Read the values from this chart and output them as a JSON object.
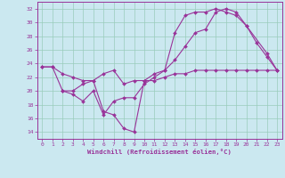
{
  "xlabel": "Windchill (Refroidissement éolien,°C)",
  "bg_color": "#cbe8f0",
  "line_color": "#993399",
  "grid_color": "#99ccbb",
  "xlim": [
    -0.5,
    23.5
  ],
  "ylim": [
    13.0,
    33.0
  ],
  "yticks": [
    14,
    16,
    18,
    20,
    22,
    24,
    26,
    28,
    30,
    32
  ],
  "xticks": [
    0,
    1,
    2,
    3,
    4,
    5,
    6,
    7,
    8,
    9,
    10,
    11,
    12,
    13,
    14,
    15,
    16,
    17,
    18,
    19,
    20,
    21,
    22,
    23
  ],
  "series": [
    {
      "x": [
        0,
        1,
        2,
        3,
        4,
        5,
        6,
        7,
        8,
        9,
        10,
        11,
        12,
        13,
        14,
        15,
        16,
        17,
        18,
        19,
        20,
        21,
        22,
        23
      ],
      "y": [
        23.5,
        23.5,
        22.5,
        22.0,
        21.5,
        21.5,
        17.0,
        16.5,
        14.5,
        14.0,
        21.5,
        22.5,
        23.0,
        28.5,
        31.0,
        31.5,
        31.5,
        32.0,
        31.5,
        31.0,
        29.5,
        27.0,
        25.0,
        23.0
      ]
    },
    {
      "x": [
        0,
        1,
        2,
        3,
        4,
        5,
        6,
        7,
        8,
        9,
        10,
        11,
        12,
        13,
        14,
        15,
        16,
        17,
        18,
        19,
        20,
        21,
        22,
        23
      ],
      "y": [
        23.5,
        23.5,
        20.0,
        20.0,
        21.0,
        21.5,
        22.5,
        23.0,
        21.0,
        21.5,
        21.5,
        21.5,
        22.0,
        22.5,
        22.5,
        23.0,
        23.0,
        23.0,
        23.0,
        23.0,
        23.0,
        23.0,
        23.0,
        23.0
      ]
    },
    {
      "x": [
        2,
        3,
        4,
        5,
        6,
        7,
        8,
        9,
        10,
        11,
        12,
        13,
        14,
        15,
        16,
        17,
        18,
        19,
        20,
        22,
        23
      ],
      "y": [
        20.0,
        19.5,
        18.5,
        20.0,
        16.5,
        18.5,
        19.0,
        19.0,
        21.0,
        22.0,
        23.0,
        24.5,
        26.5,
        28.5,
        29.0,
        31.5,
        32.0,
        31.5,
        29.5,
        25.5,
        23.0
      ]
    }
  ]
}
